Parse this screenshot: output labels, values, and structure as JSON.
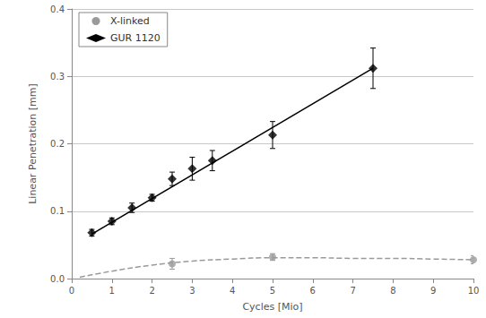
{
  "chart_data": {
    "type": "scatter",
    "xlabel": "Cycles [Mio]",
    "ylabel": "Linear Penetration [mm]",
    "xlim": [
      0,
      10
    ],
    "xticks": [
      0,
      1,
      2,
      3,
      4,
      5,
      6,
      7,
      8,
      9,
      10
    ],
    "ylim": [
      0,
      0.4
    ],
    "yticks": [
      {
        "value": 0,
        "label": "0.0"
      },
      {
        "value": 0.1,
        "label": "0.1"
      },
      {
        "value": 0.2,
        "label": "0.2"
      },
      {
        "value": 0.3,
        "label": "0.3"
      },
      {
        "value": 0.4,
        "label": "0.4"
      }
    ],
    "grid": true,
    "legend": "upper left",
    "series": [
      {
        "name": "X-linked",
        "color": "#9a9a9a",
        "marker": "circle",
        "line_style": "dashed",
        "x": [
          2.5,
          5,
          10
        ],
        "values": [
          0.022,
          0.032,
          0.028
        ],
        "errors": [
          0.008,
          0.005,
          0.006
        ],
        "fit": {
          "x": [
            0.2,
            1,
            2,
            3,
            4,
            5,
            6,
            7,
            8,
            9,
            10
          ],
          "values": [
            0.002,
            0.011,
            0.02,
            0.026,
            0.029,
            0.031,
            0.031,
            0.03,
            0.03,
            0.029,
            0.028
          ]
        }
      },
      {
        "name": "GUR 1120",
        "color": "#000000",
        "marker": "diamond",
        "line_style": "solid",
        "x": [
          0.5,
          1,
          1.5,
          2,
          2.5,
          3,
          3.5,
          5,
          7.5
        ],
        "values": [
          0.068,
          0.085,
          0.105,
          0.12,
          0.148,
          0.163,
          0.175,
          0.213,
          0.312
        ],
        "errors": [
          0.005,
          0.005,
          0.007,
          0.005,
          0.01,
          0.017,
          0.015,
          0.02,
          0.03
        ],
        "fit": {
          "x": [
            0.5,
            7.5
          ],
          "values": [
            0.066,
            0.312
          ]
        }
      }
    ]
  }
}
